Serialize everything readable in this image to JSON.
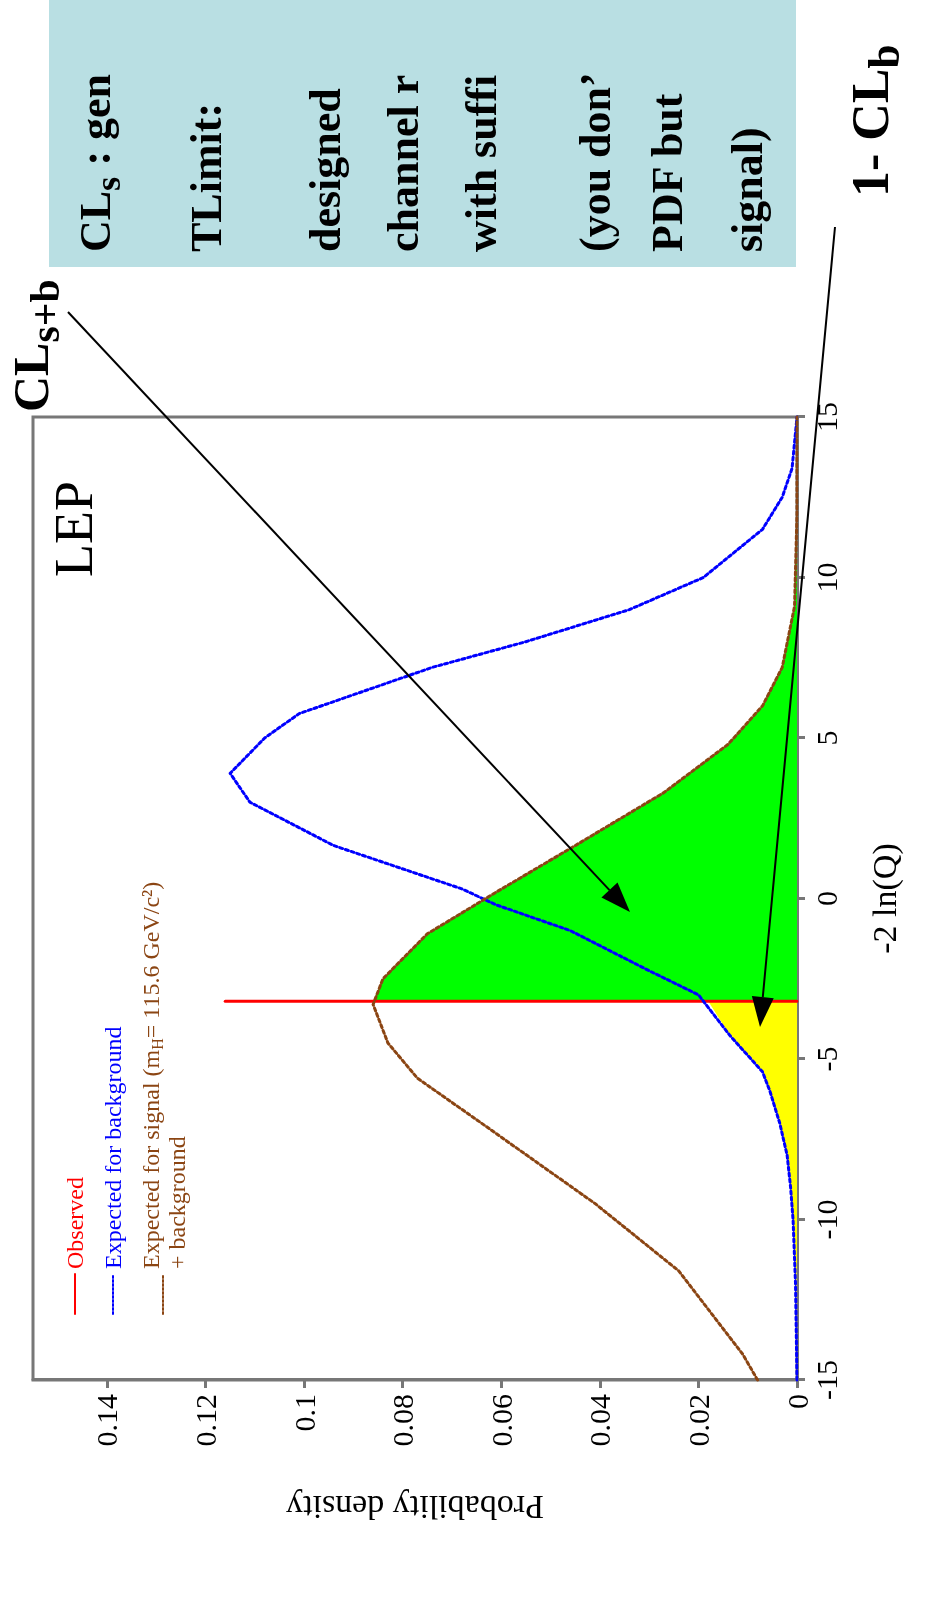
{
  "chart_data": {
    "type": "line",
    "xlabel": "Probability density",
    "ylabel": "-2 ln(Q)",
    "xlim": [
      0.155,
      0
    ],
    "xticks": [
      0.14,
      0.12,
      0.1,
      0.08,
      0.06,
      0.04,
      0.02,
      0
    ],
    "ylim": [
      -15,
      15
    ],
    "yticks": [
      -15,
      -10,
      -5,
      0,
      5,
      10,
      15
    ],
    "legend": "bottom left",
    "marker": "none",
    "annotations": [
      "LEP",
      "CL$_{s+b}$",
      "CL$_{s}$ : gen",
      "TLimit:",
      "designed",
      "channel r",
      "with suffi",
      "(you don’",
      "PDF but",
      "signal)",
      "1- CL$_{b}$"
    ],
    "series": [
      {
        "type": "area",
        "color": "#00ff00",
        "values": [
          -3.2,
          -3.2,
          -2.5,
          -1.1,
          0.2,
          1.74,
          3.3,
          4.8,
          6,
          7.2,
          9.1,
          12,
          15
        ],
        "x": [
          0,
          0.086,
          0.084,
          0.075,
          0.061,
          0.044,
          0.027,
          0.014,
          0.007,
          0.003,
          0.0005,
          0,
          0
        ]
      },
      {
        "type": "area",
        "color": "#ffff00",
        "values": [
          -15,
          -12,
          -10,
          -9,
          -8,
          -7,
          -6,
          -5.4,
          -4.27,
          -3.2,
          -3.2
        ],
        "x": [
          0,
          0.0003,
          0.0008,
          0.0013,
          0.002,
          0.0035,
          0.0055,
          0.007,
          0.0136,
          0.018,
          0
        ]
      },
      {
        "name": "Observed",
        "type": "line",
        "color": "#ff0000",
        "line_style": "solid",
        "values": [
          -3.2,
          -3.2
        ],
        "x": [
          0,
          0.116
        ]
      },
      {
        "name": "Expected for background",
        "type": "line",
        "color": "#0000ff",
        "line_style": "dotted",
        "values": [
          -15,
          -12,
          -10,
          -9,
          -8,
          -7,
          -6,
          -5.4,
          -4.27,
          -3,
          -2.25,
          -1,
          -0.2,
          0.3,
          1.65,
          3,
          3.9,
          5,
          5.76,
          7.2,
          8,
          9,
          10,
          11.5,
          12.5,
          13.4,
          15
        ],
        "x": [
          0,
          0.0003,
          0.0008,
          0.0013,
          0.002,
          0.0035,
          0.0055,
          0.007,
          0.0136,
          0.02,
          0.03,
          0.046,
          0.061,
          0.068,
          0.094,
          0.111,
          0.115,
          0.108,
          0.101,
          0.074,
          0.055,
          0.034,
          0.019,
          0.007,
          0.003,
          0.001,
          0
        ]
      },
      {
        "name": "Expected for signal (m$_{H}$= 115.6 GeV/c²)\n+ background",
        "type": "line",
        "color": "#8b4513",
        "line_style": "dotted",
        "values": [
          -15,
          -14.2,
          -11.6,
          -9.5,
          -7,
          -5.6,
          -4.5,
          -3.3,
          -2.5,
          -1.1,
          0.2,
          1.74,
          3.3,
          4.8,
          6,
          7.2,
          9.1,
          12,
          15
        ],
        "x": [
          0.008,
          0.011,
          0.024,
          0.041,
          0.064,
          0.077,
          0.083,
          0.086,
          0.084,
          0.075,
          0.061,
          0.044,
          0.027,
          0.014,
          0.007,
          0.003,
          0.0005,
          0,
          0
        ]
      }
    ]
  }
}
